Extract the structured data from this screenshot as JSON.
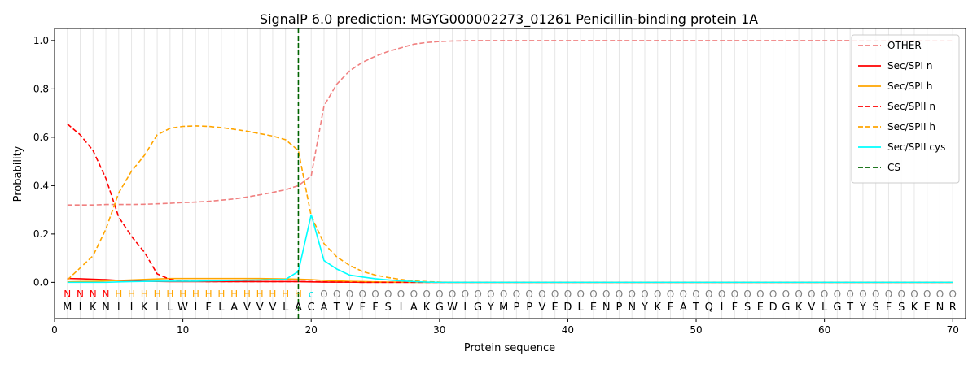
{
  "chart_data": {
    "type": "line",
    "title": "SignalP 6.0 prediction: MGYG000002273_01261 Penicillin-binding protein 1A",
    "xlabel": "Protein sequence",
    "ylabel": "Probability",
    "xlim": [
      0,
      71
    ],
    "ylim": [
      -0.15,
      1.05
    ],
    "x_ticks": [
      0,
      10,
      20,
      30,
      40,
      50,
      60,
      70
    ],
    "y_ticks": [
      0.0,
      0.2,
      0.4,
      0.6,
      0.8,
      1.0
    ],
    "grid": "vertical lines at each residue position",
    "legend_position": "top-right",
    "cleavage_site": 19,
    "sequence": [
      "M",
      "I",
      "K",
      "N",
      "I",
      "I",
      "K",
      "I",
      "L",
      "W",
      "I",
      "F",
      "L",
      "A",
      "V",
      "V",
      "V",
      "L",
      "A",
      "C",
      "A",
      "T",
      "V",
      "F",
      "F",
      "S",
      "I",
      "A",
      "K",
      "G",
      "W",
      "I",
      "G",
      "Y",
      "M",
      "P",
      "P",
      "V",
      "E",
      "D",
      "L",
      "E",
      "N",
      "P",
      "N",
      "Y",
      "K",
      "F",
      "A",
      "T",
      "Q",
      "I",
      "F",
      "S",
      "E",
      "D",
      "G",
      "K",
      "V",
      "L",
      "G",
      "T",
      "Y",
      "S",
      "F",
      "S",
      "K",
      "E",
      "N",
      "R"
    ],
    "labels": [
      "N",
      "N",
      "N",
      "N",
      "H",
      "H",
      "H",
      "H",
      "H",
      "H",
      "H",
      "H",
      "H",
      "H",
      "H",
      "H",
      "H",
      "H",
      "H",
      "C",
      "O",
      "O",
      "O",
      "O",
      "O",
      "O",
      "O",
      "O",
      "O",
      "O",
      "O",
      "O",
      "O",
      "O",
      "O",
      "O",
      "O",
      "O",
      "O",
      "O",
      "O",
      "O",
      "O",
      "O",
      "O",
      "O",
      "O",
      "O",
      "O",
      "O",
      "O",
      "O",
      "O",
      "O",
      "O",
      "O",
      "O",
      "O",
      "O",
      "O",
      "O",
      "O",
      "O",
      "O",
      "O",
      "O",
      "O",
      "O",
      "O",
      "O"
    ],
    "label_colors": {
      "N": "#ff0000",
      "H": "#ffa500",
      "C": "#00e5e5",
      "O": "#808080"
    },
    "series": [
      {
        "name": "OTHER",
        "color": "#f08080",
        "dash": "dashed",
        "values": [
          0.32,
          0.32,
          0.32,
          0.322,
          0.322,
          0.322,
          0.323,
          0.325,
          0.327,
          0.33,
          0.332,
          0.335,
          0.34,
          0.345,
          0.353,
          0.362,
          0.372,
          0.383,
          0.4,
          0.44,
          0.73,
          0.82,
          0.875,
          0.91,
          0.935,
          0.955,
          0.97,
          0.985,
          0.992,
          0.996,
          0.998,
          0.999,
          1.0,
          1.0,
          1.0,
          1.0,
          1.0,
          1.0,
          1.0,
          1.0,
          1.0,
          1.0,
          1.0,
          1.0,
          1.0,
          1.0,
          1.0,
          1.0,
          1.0,
          1.0,
          1.0,
          1.0,
          1.0,
          1.0,
          1.0,
          1.0,
          1.0,
          1.0,
          1.0,
          1.0,
          1.0,
          1.0,
          1.0,
          1.0,
          1.0,
          1.0,
          1.0,
          1.0,
          1.0,
          1.0
        ]
      },
      {
        "name": "Sec/SPI n",
        "color": "#ff0000",
        "dash": "solid",
        "values": [
          0.016,
          0.015,
          0.013,
          0.011,
          0.008,
          0.006,
          0.005,
          0.004,
          0.003,
          0.003,
          0.003,
          0.003,
          0.003,
          0.003,
          0.003,
          0.003,
          0.003,
          0.003,
          0.003,
          0.002,
          0.001,
          0.001,
          0.001,
          0.0,
          0.0,
          0.0,
          0.0,
          0.0,
          0.0,
          0.0,
          0.0,
          0.0,
          0.0,
          0.0,
          0.0,
          0.0,
          0.0,
          0.0,
          0.0,
          0.0,
          0.0,
          0.0,
          0.0,
          0.0,
          0.0,
          0.0,
          0.0,
          0.0,
          0.0,
          0.0,
          0.0,
          0.0,
          0.0,
          0.0,
          0.0,
          0.0,
          0.0,
          0.0,
          0.0,
          0.0,
          0.0,
          0.0,
          0.0,
          0.0,
          0.0,
          0.0,
          0.0,
          0.0,
          0.0,
          0.0
        ]
      },
      {
        "name": "Sec/SPI h",
        "color": "#ffa500",
        "dash": "solid",
        "values": [
          0.002,
          0.003,
          0.004,
          0.006,
          0.008,
          0.01,
          0.012,
          0.014,
          0.016,
          0.016,
          0.016,
          0.016,
          0.016,
          0.016,
          0.016,
          0.016,
          0.015,
          0.014,
          0.013,
          0.011,
          0.008,
          0.006,
          0.004,
          0.003,
          0.002,
          0.001,
          0.001,
          0.0,
          0.0,
          0.0,
          0.0,
          0.0,
          0.0,
          0.0,
          0.0,
          0.0,
          0.0,
          0.0,
          0.0,
          0.0,
          0.0,
          0.0,
          0.0,
          0.0,
          0.0,
          0.0,
          0.0,
          0.0,
          0.0,
          0.0,
          0.0,
          0.0,
          0.0,
          0.0,
          0.0,
          0.0,
          0.0,
          0.0,
          0.0,
          0.0,
          0.0,
          0.0,
          0.0,
          0.0,
          0.0,
          0.0,
          0.0,
          0.0,
          0.0,
          0.0
        ]
      },
      {
        "name": "Sec/SPII n",
        "color": "#ff0000",
        "dash": "dashed",
        "values": [
          0.655,
          0.61,
          0.545,
          0.43,
          0.27,
          0.19,
          0.125,
          0.035,
          0.012,
          0.005,
          0.004,
          0.003,
          0.003,
          0.003,
          0.003,
          0.003,
          0.003,
          0.003,
          0.003,
          0.003,
          0.002,
          0.001,
          0.001,
          0.0,
          0.0,
          0.0,
          0.0,
          0.0,
          0.0,
          0.0,
          0.0,
          0.0,
          0.0,
          0.0,
          0.0,
          0.0,
          0.0,
          0.0,
          0.0,
          0.0,
          0.0,
          0.0,
          0.0,
          0.0,
          0.0,
          0.0,
          0.0,
          0.0,
          0.0,
          0.0,
          0.0,
          0.0,
          0.0,
          0.0,
          0.0,
          0.0,
          0.0,
          0.0,
          0.0,
          0.0,
          0.0,
          0.0,
          0.0,
          0.0,
          0.0,
          0.0,
          0.0,
          0.0,
          0.0,
          0.0
        ]
      },
      {
        "name": "Sec/SPII h",
        "color": "#ffa500",
        "dash": "dashed",
        "values": [
          0.01,
          0.06,
          0.11,
          0.22,
          0.37,
          0.46,
          0.525,
          0.61,
          0.637,
          0.645,
          0.647,
          0.645,
          0.64,
          0.633,
          0.625,
          0.615,
          0.605,
          0.59,
          0.545,
          0.275,
          0.16,
          0.105,
          0.07,
          0.045,
          0.03,
          0.02,
          0.012,
          0.006,
          0.003,
          0.001,
          0.0,
          0.0,
          0.0,
          0.0,
          0.0,
          0.0,
          0.0,
          0.0,
          0.0,
          0.0,
          0.0,
          0.0,
          0.0,
          0.0,
          0.0,
          0.0,
          0.0,
          0.0,
          0.0,
          0.0,
          0.0,
          0.0,
          0.0,
          0.0,
          0.0,
          0.0,
          0.0,
          0.0,
          0.0,
          0.0,
          0.0,
          0.0,
          0.0,
          0.0,
          0.0,
          0.0,
          0.0,
          0.0,
          0.0,
          0.0
        ]
      },
      {
        "name": "Sec/SPII cys",
        "color": "#00ffff",
        "dash": "solid",
        "values": [
          0.0,
          0.0,
          0.0,
          0.0,
          0.002,
          0.003,
          0.004,
          0.005,
          0.005,
          0.005,
          0.005,
          0.006,
          0.007,
          0.008,
          0.009,
          0.01,
          0.011,
          0.012,
          0.045,
          0.28,
          0.09,
          0.055,
          0.03,
          0.022,
          0.015,
          0.01,
          0.006,
          0.003,
          0.001,
          0.0,
          0.0,
          0.0,
          0.0,
          0.0,
          0.0,
          0.0,
          0.0,
          0.0,
          0.0,
          0.0,
          0.0,
          0.0,
          0.0,
          0.0,
          0.0,
          0.0,
          0.0,
          0.0,
          0.0,
          0.0,
          0.0,
          0.0,
          0.0,
          0.0,
          0.0,
          0.0,
          0.0,
          0.0,
          0.0,
          0.0,
          0.0,
          0.0,
          0.0,
          0.0,
          0.0,
          0.0,
          0.0,
          0.0,
          0.0,
          0.0
        ]
      }
    ],
    "legend": [
      {
        "name": "OTHER",
        "color": "#f08080",
        "dash": "dashed"
      },
      {
        "name": "Sec/SPI n",
        "color": "#ff0000",
        "dash": "solid"
      },
      {
        "name": "Sec/SPI h",
        "color": "#ffa500",
        "dash": "solid"
      },
      {
        "name": "Sec/SPII n",
        "color": "#ff0000",
        "dash": "dashed"
      },
      {
        "name": "Sec/SPII h",
        "color": "#ffa500",
        "dash": "dashed"
      },
      {
        "name": "Sec/SPII cys",
        "color": "#00ffff",
        "dash": "solid"
      },
      {
        "name": "CS",
        "color": "#006400",
        "dash": "dashed"
      }
    ]
  }
}
